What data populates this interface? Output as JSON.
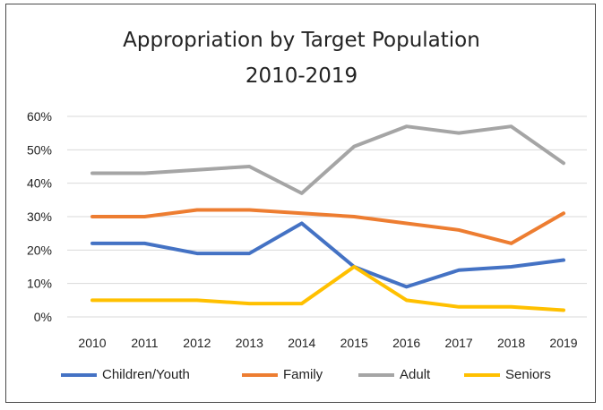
{
  "chart_data": {
    "type": "line",
    "title": "Appropriation by Target Population",
    "subtitle": "2010-2019",
    "categories": [
      "2010",
      "2011",
      "2012",
      "2013",
      "2014",
      "2015",
      "2016",
      "2017",
      "2018",
      "2019"
    ],
    "ylim": [
      0,
      60
    ],
    "yticks": [
      "0%",
      "10%",
      "20%",
      "30%",
      "40%",
      "50%",
      "60%"
    ],
    "grid": true,
    "legend": "bottom",
    "series": [
      {
        "name": "Children/Youth",
        "color": "#4472c4",
        "values": [
          22,
          22,
          19,
          19,
          28,
          15,
          9,
          14,
          15,
          17
        ]
      },
      {
        "name": "Family",
        "color": "#ed7d31",
        "values": [
          30,
          30,
          32,
          32,
          31,
          30,
          28,
          26,
          22,
          31
        ]
      },
      {
        "name": "Adult",
        "color": "#a5a5a5",
        "values": [
          43,
          43,
          44,
          45,
          37,
          51,
          57,
          55,
          57,
          46
        ]
      },
      {
        "name": "Seniors",
        "color": "#ffc000",
        "values": [
          5,
          5,
          5,
          4,
          4,
          15,
          5,
          3,
          3,
          2
        ]
      }
    ]
  }
}
